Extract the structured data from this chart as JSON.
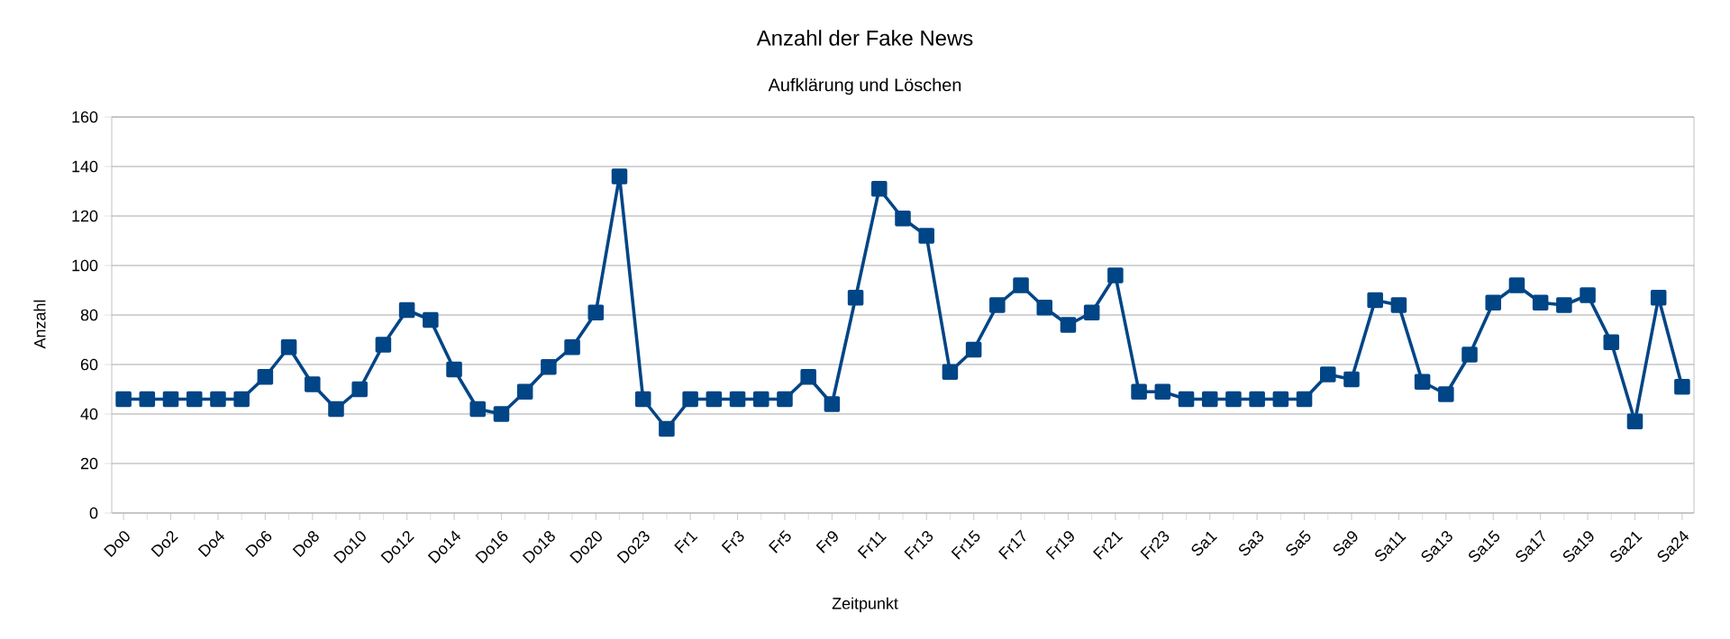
{
  "chart_data": {
    "type": "line",
    "title": "Anzahl der Fake News",
    "subtitle": "Aufklärung und Löschen",
    "xlabel": "Zeitpunkt",
    "ylabel": "Anzahl",
    "categories": [
      "Do0",
      null,
      "Do2",
      null,
      "Do4",
      null,
      "Do6",
      null,
      "Do8",
      null,
      "Do10",
      null,
      "Do12",
      null,
      "Do14",
      null,
      "Do16",
      null,
      "Do18",
      null,
      "Do20",
      null,
      "Do23",
      null,
      "Fr1",
      null,
      "Fr3",
      null,
      "Fr5",
      null,
      "Fr9",
      null,
      "Fr11",
      null,
      "Fr13",
      null,
      "Fr15",
      null,
      "Fr17",
      null,
      "Fr19",
      null,
      "Fr21",
      null,
      "Fr23",
      null,
      "Sa1",
      null,
      "Sa3",
      null,
      "Sa5",
      null,
      "Sa9",
      null,
      "Sa11",
      null,
      "Sa13",
      null,
      "Sa15",
      null,
      "Sa17",
      null,
      "Sa19",
      null,
      "Sa21",
      null,
      "Sa24"
    ],
    "values": [
      46,
      46,
      46,
      46,
      46,
      46,
      55,
      67,
      52,
      42,
      50,
      68,
      82,
      78,
      58,
      42,
      40,
      49,
      59,
      67,
      81,
      136,
      46,
      34,
      46,
      46,
      46,
      46,
      46,
      55,
      44,
      87,
      131,
      119,
      112,
      57,
      66,
      84,
      92,
      83,
      76,
      81,
      96,
      49,
      49,
      46,
      46,
      46,
      46,
      46,
      46,
      56,
      54,
      86,
      84,
      53,
      48,
      64,
      85,
      92,
      85,
      84,
      88,
      69,
      37,
      87,
      51
    ],
    "color": "#004586",
    "marker": "square",
    "ylim": [
      0,
      160
    ],
    "yticks": [
      0,
      20,
      40,
      60,
      80,
      100,
      120,
      140,
      160
    ],
    "grid": "y"
  }
}
